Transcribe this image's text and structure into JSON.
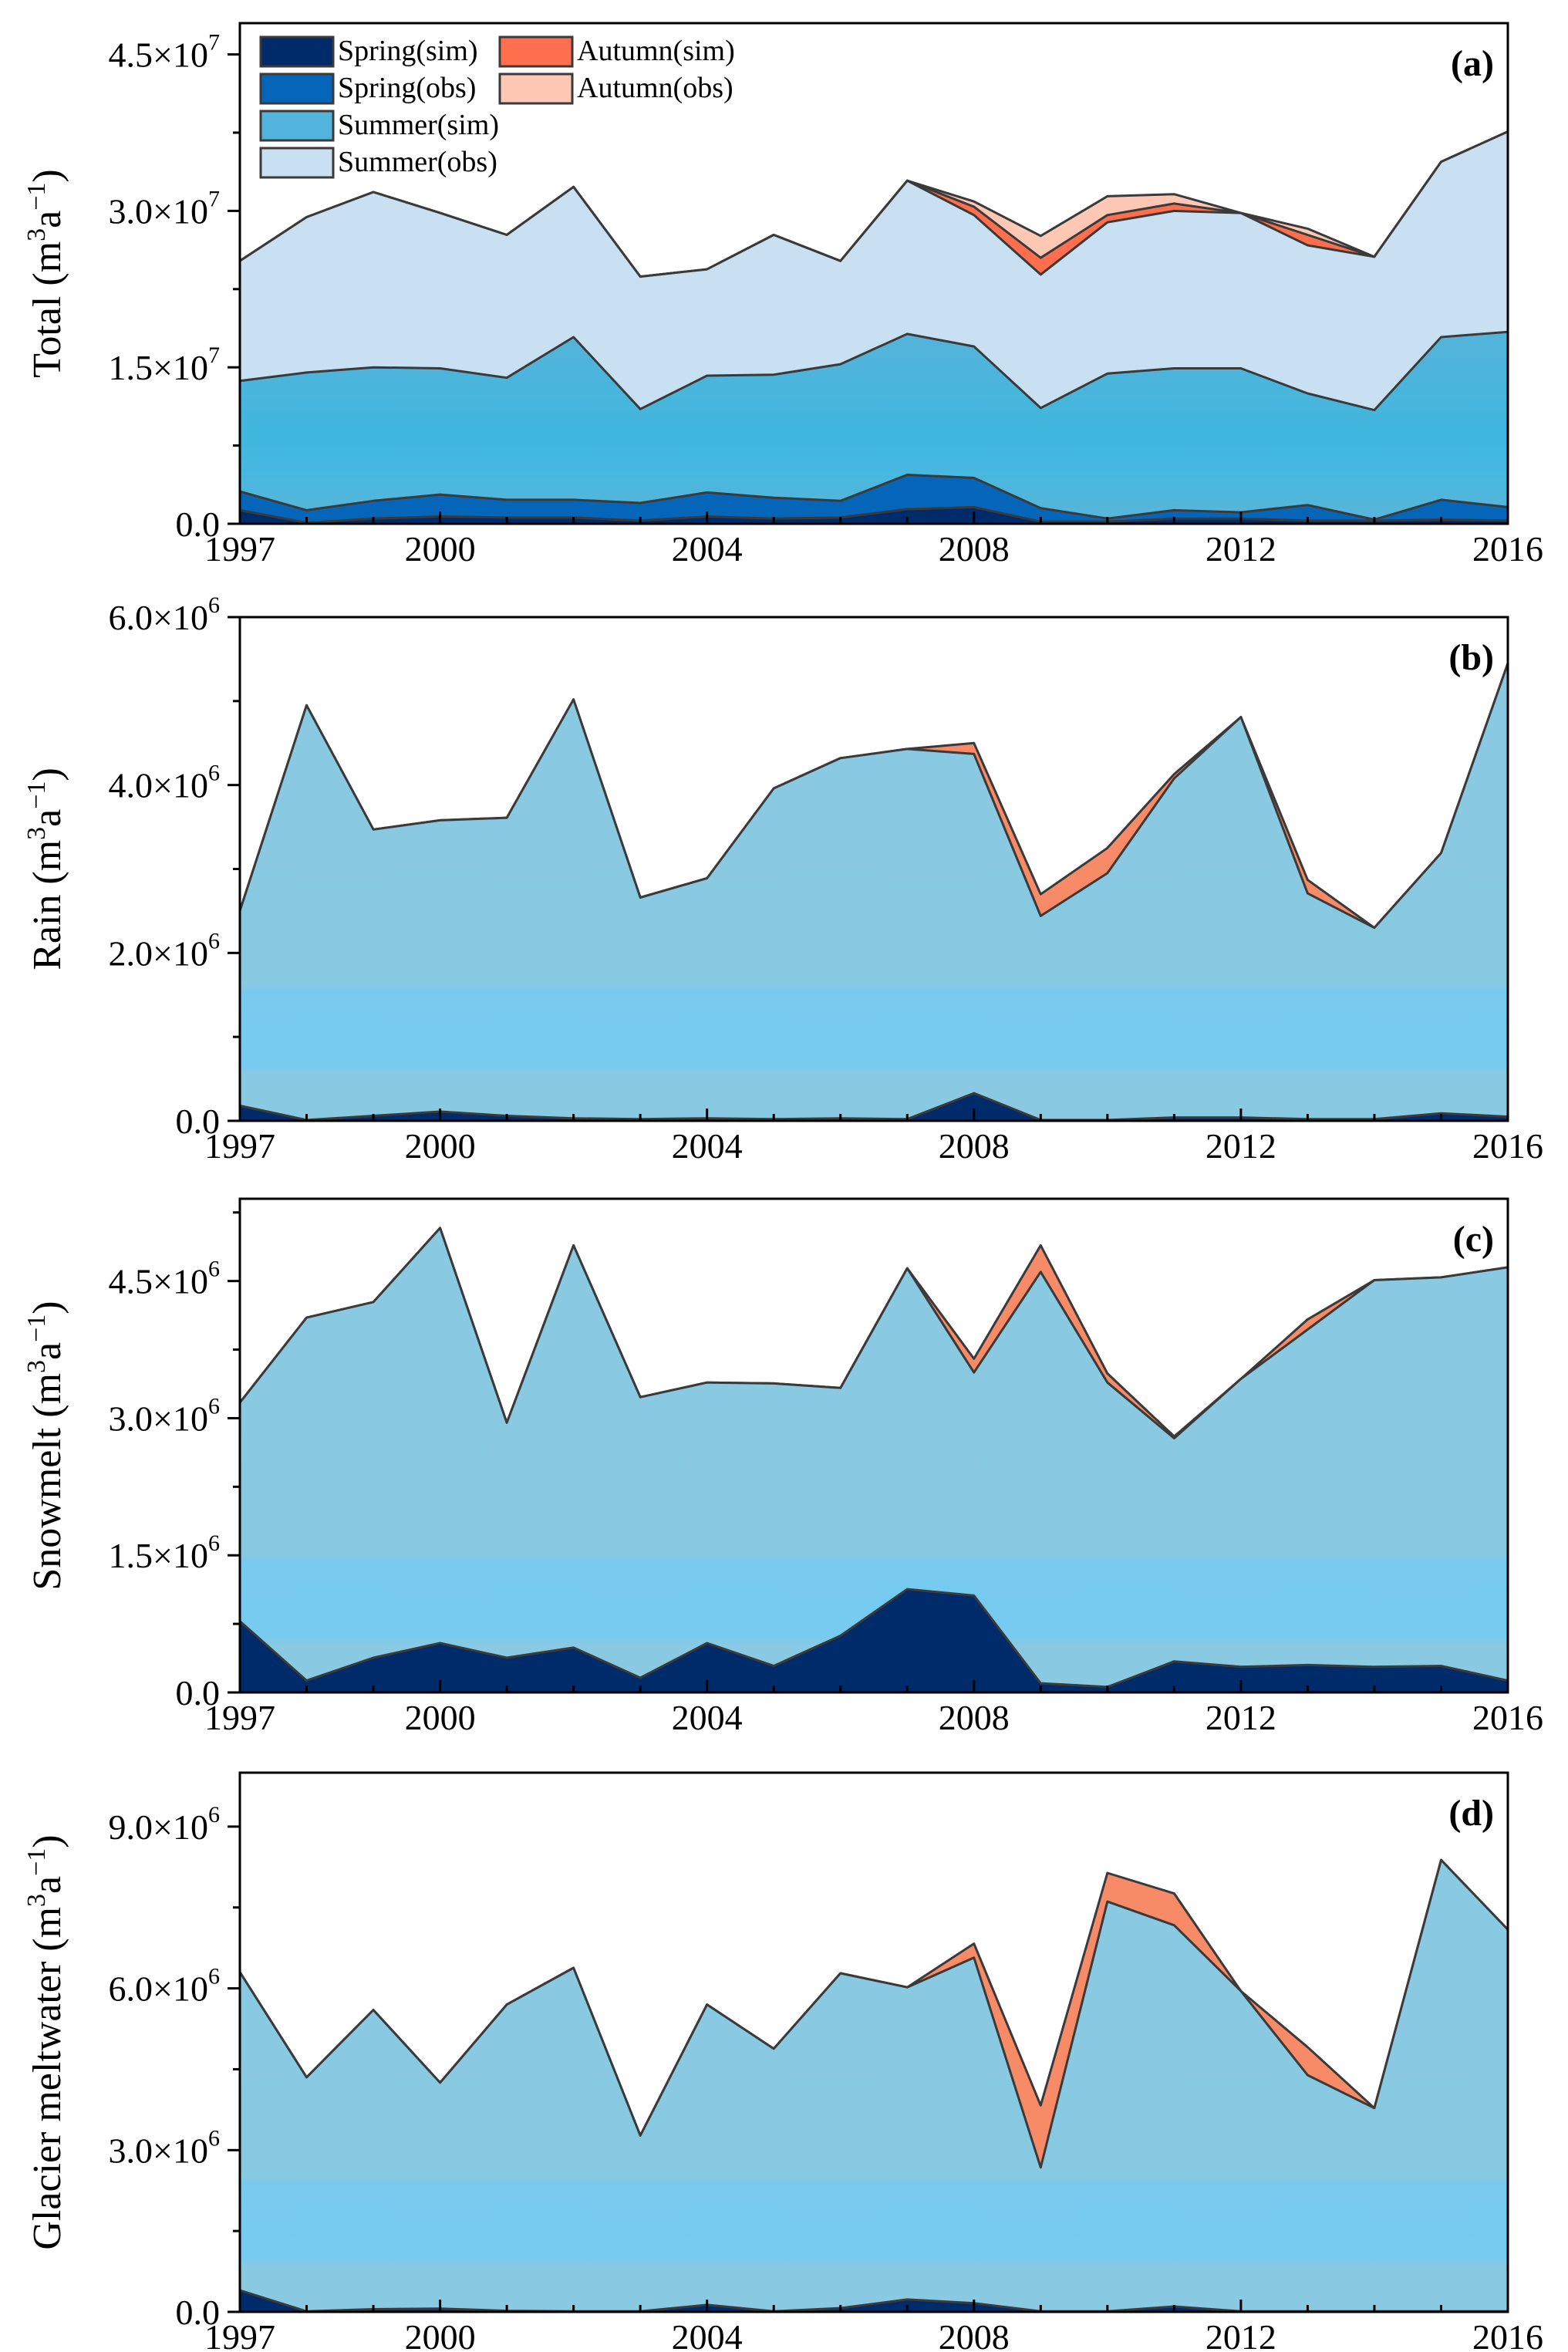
{
  "chart_data": [
    {
      "type": "area",
      "panel_label": "(a)",
      "ylabel": "Total (m",
      "ylabel_unit": "3",
      "ylabel_rest": "a",
      "ylabel_exp": "−1",
      "ylabel_close": ")",
      "x": [
        1997,
        1998,
        1999,
        2000,
        2001,
        2002,
        2003,
        2004,
        2005,
        2006,
        2007,
        2008,
        2009,
        2010,
        2011,
        2012,
        2013,
        2014,
        2015,
        2016
      ],
      "x_ticks": [
        "1997",
        "2000",
        "2004",
        "2008",
        "2012",
        "2016"
      ],
      "x_tick_values": [
        1997,
        2000,
        2004,
        2008,
        2012,
        2016
      ],
      "ylim": [
        0,
        48000000
      ],
      "y_ticks": [
        0,
        15000000,
        30000000,
        45000000
      ],
      "y_tick_labels": [
        {
          "mant": "0.0",
          "exp": ""
        },
        {
          "mant": "1.5×10",
          "exp": "7"
        },
        {
          "mant": "3.0×10",
          "exp": "7"
        },
        {
          "mant": "4.5×10",
          "exp": "7"
        }
      ],
      "legend": {
        "placement": "top-left",
        "entries": [
          {
            "label": "Spring(sim)",
            "color": "#002b6b"
          },
          {
            "label": "Spring(obs)",
            "color": "#0565b8"
          },
          {
            "label": "Summer(sim)",
            "color": "#52b4dc"
          },
          {
            "label": "Summer(obs)",
            "color": "#c9dff2"
          },
          {
            "label": "Autumn(sim)",
            "color": "#ff6f4e"
          },
          {
            "label": "Autumn(obs)",
            "color": "#ffc8b5"
          }
        ]
      },
      "series": [
        {
          "name": "Autumn(obs)",
          "color": "#ffc8b5",
          "values": [
            25200000,
            29400000,
            31800000,
            29800000,
            27700000,
            32300000,
            23700000,
            24400000,
            27700000,
            25200000,
            32900000,
            30900000,
            27600000,
            31400000,
            31600000,
            29800000,
            28300000,
            25600000,
            34700000,
            37600000
          ]
        },
        {
          "name": "Autumn(sim)",
          "color": "#ff6f4e",
          "values": [
            25200000,
            29400000,
            31800000,
            29800000,
            27700000,
            32300000,
            23700000,
            24400000,
            27700000,
            25200000,
            32900000,
            30400000,
            25500000,
            29600000,
            30700000,
            29800000,
            27700000,
            25600000,
            34700000,
            37600000
          ]
        },
        {
          "name": "Summer(obs)",
          "color": "#c9dff2",
          "values": [
            25200000,
            29400000,
            31800000,
            29800000,
            27700000,
            32300000,
            23700000,
            24400000,
            27700000,
            25200000,
            32900000,
            29600000,
            23900000,
            28900000,
            30000000,
            29800000,
            26700000,
            25600000,
            34700000,
            37600000
          ]
        },
        {
          "name": "Summer(sim)",
          "color": "#52b4dc",
          "values": [
            13700000,
            14500000,
            15000000,
            14900000,
            14000000,
            17900000,
            11000000,
            14200000,
            14300000,
            15300000,
            18200000,
            17000000,
            11100000,
            14400000,
            14900000,
            14900000,
            12500000,
            10900000,
            17900000,
            18400000
          ]
        },
        {
          "name": "Spring(obs)",
          "color": "#0565b8",
          "values": [
            3100000,
            1300000,
            2200000,
            2800000,
            2300000,
            2300000,
            2000000,
            3000000,
            2500000,
            2200000,
            4700000,
            4400000,
            1500000,
            500000,
            1300000,
            1100000,
            1800000,
            400000,
            2300000,
            1600000
          ]
        },
        {
          "name": "Spring(sim)",
          "color": "#002b6b",
          "values": [
            1300000,
            100000,
            500000,
            700000,
            600000,
            600000,
            300000,
            700000,
            500000,
            600000,
            1400000,
            1600000,
            200000,
            200000,
            500000,
            500000,
            300000,
            300000,
            400000,
            300000
          ]
        }
      ]
    },
    {
      "type": "area",
      "panel_label": "(b)",
      "ylabel": "Rain (m",
      "ylabel_unit": "3",
      "ylabel_rest": "a",
      "ylabel_exp": "−1",
      "ylabel_close": ")",
      "x": [
        1997,
        1998,
        1999,
        2000,
        2001,
        2002,
        2003,
        2004,
        2005,
        2006,
        2007,
        2008,
        2009,
        2010,
        2011,
        2012,
        2013,
        2014,
        2015,
        2016
      ],
      "x_ticks": [
        "1997",
        "2000",
        "2004",
        "2008",
        "2012",
        "2016"
      ],
      "x_tick_values": [
        1997,
        2000,
        2004,
        2008,
        2012,
        2016
      ],
      "ylim": [
        0,
        6000000
      ],
      "y_ticks": [
        0,
        2000000,
        4000000,
        6000000
      ],
      "y_tick_labels": [
        {
          "mant": "0.0",
          "exp": ""
        },
        {
          "mant": "2.0×10",
          "exp": "6"
        },
        {
          "mant": "4.0×10",
          "exp": "6"
        },
        {
          "mant": "6.0×10",
          "exp": "6"
        }
      ],
      "series": [
        {
          "name": "Autumn(sim)",
          "color": "#f78a67",
          "values": [
            2500000,
            4950000,
            3470000,
            3580000,
            3610000,
            5020000,
            2660000,
            2890000,
            3960000,
            4320000,
            4430000,
            4500000,
            2700000,
            3250000,
            4130000,
            4810000,
            2870000,
            2300000,
            3190000,
            5450000
          ]
        },
        {
          "name": "Summer(sim)",
          "color": "#88c9e1",
          "values": [
            2500000,
            4950000,
            3470000,
            3580000,
            3610000,
            5020000,
            2660000,
            2890000,
            3960000,
            4320000,
            4430000,
            4370000,
            2440000,
            2950000,
            4080000,
            4810000,
            2710000,
            2300000,
            3190000,
            5450000
          ]
        },
        {
          "name": "Spring(sim)",
          "color": "#002b6b",
          "values": [
            180000,
            10000,
            60000,
            110000,
            60000,
            30000,
            20000,
            30000,
            20000,
            30000,
            20000,
            330000,
            10000,
            10000,
            40000,
            40000,
            20000,
            20000,
            90000,
            50000
          ]
        }
      ]
    },
    {
      "type": "area",
      "panel_label": "(c)",
      "ylabel": "Snowmelt (m",
      "ylabel_unit": "3",
      "ylabel_rest": "a",
      "ylabel_exp": "−1",
      "ylabel_close": ")",
      "x": [
        1997,
        1998,
        1999,
        2000,
        2001,
        2002,
        2003,
        2004,
        2005,
        2006,
        2007,
        2008,
        2009,
        2010,
        2011,
        2012,
        2013,
        2014,
        2015,
        2016
      ],
      "x_ticks": [
        "1997",
        "2000",
        "2004",
        "2008",
        "2012",
        "2016"
      ],
      "x_tick_values": [
        1997,
        2000,
        2004,
        2008,
        2012,
        2016
      ],
      "ylim": [
        0,
        5400000
      ],
      "y_ticks": [
        0,
        1500000,
        3000000,
        4500000
      ],
      "y_tick_labels": [
        {
          "mant": "0.0",
          "exp": ""
        },
        {
          "mant": "1.5×10",
          "exp": "6"
        },
        {
          "mant": "3.0×10",
          "exp": "6"
        },
        {
          "mant": "4.5×10",
          "exp": "6"
        }
      ],
      "series": [
        {
          "name": "Autumn(sim)",
          "color": "#f78a67",
          "values": [
            3170000,
            4100000,
            4270000,
            5080000,
            2950000,
            4890000,
            3230000,
            3390000,
            3380000,
            3330000,
            4640000,
            3650000,
            4890000,
            3490000,
            2800000,
            3430000,
            4080000,
            4510000,
            4540000,
            4650000
          ]
        },
        {
          "name": "Summer(sim)",
          "color": "#88c9e1",
          "values": [
            3170000,
            4100000,
            4270000,
            5080000,
            2950000,
            4890000,
            3230000,
            3390000,
            3380000,
            3330000,
            4640000,
            3500000,
            4600000,
            3390000,
            2780000,
            3430000,
            3970000,
            4510000,
            4540000,
            4650000
          ]
        },
        {
          "name": "Spring(sim)",
          "color": "#002b6b",
          "values": [
            780000,
            130000,
            380000,
            540000,
            380000,
            490000,
            160000,
            540000,
            290000,
            620000,
            1130000,
            1060000,
            100000,
            60000,
            340000,
            280000,
            300000,
            280000,
            290000,
            130000
          ]
        }
      ]
    },
    {
      "type": "area",
      "panel_label": "(d)",
      "ylabel": "Glacier meltwater (m",
      "ylabel_unit": "3",
      "ylabel_rest": "a",
      "ylabel_exp": "−1",
      "ylabel_close": ")",
      "x": [
        1997,
        1998,
        1999,
        2000,
        2001,
        2002,
        2003,
        2004,
        2005,
        2006,
        2007,
        2008,
        2009,
        2010,
        2011,
        2012,
        2013,
        2014,
        2015,
        2016
      ],
      "x_ticks": [
        "1997",
        "2000",
        "2004",
        "2008",
        "2012",
        "2016"
      ],
      "x_tick_values": [
        1997,
        2000,
        2004,
        2008,
        2012,
        2016
      ],
      "ylim": [
        0,
        10000000
      ],
      "y_ticks": [
        0,
        3000000,
        6000000,
        9000000
      ],
      "y_tick_labels": [
        {
          "mant": "0.0",
          "exp": ""
        },
        {
          "mant": "3.0×10",
          "exp": "6"
        },
        {
          "mant": "6.0×10",
          "exp": "6"
        },
        {
          "mant": "9.0×10",
          "exp": "6"
        }
      ],
      "series": [
        {
          "name": "Autumn(sim)",
          "color": "#f78a67",
          "values": [
            6300000,
            4350000,
            5600000,
            4250000,
            5700000,
            6380000,
            3270000,
            5700000,
            4880000,
            6280000,
            6020000,
            6830000,
            3830000,
            8140000,
            7760000,
            5950000,
            4910000,
            3780000,
            8380000,
            7090000
          ]
        },
        {
          "name": "Summer(sim)",
          "color": "#88c9e1",
          "values": [
            6300000,
            4350000,
            5600000,
            4250000,
            5700000,
            6380000,
            3270000,
            5700000,
            4880000,
            6280000,
            6020000,
            6570000,
            2680000,
            7610000,
            7170000,
            5950000,
            4390000,
            3780000,
            8380000,
            7090000
          ]
        },
        {
          "name": "Spring(sim)",
          "color": "#002b6b",
          "values": [
            400000,
            10000,
            50000,
            60000,
            20000,
            10000,
            10000,
            130000,
            10000,
            70000,
            230000,
            160000,
            10000,
            10000,
            100000,
            10000,
            10000,
            10000,
            10000,
            10000
          ]
        }
      ]
    }
  ]
}
